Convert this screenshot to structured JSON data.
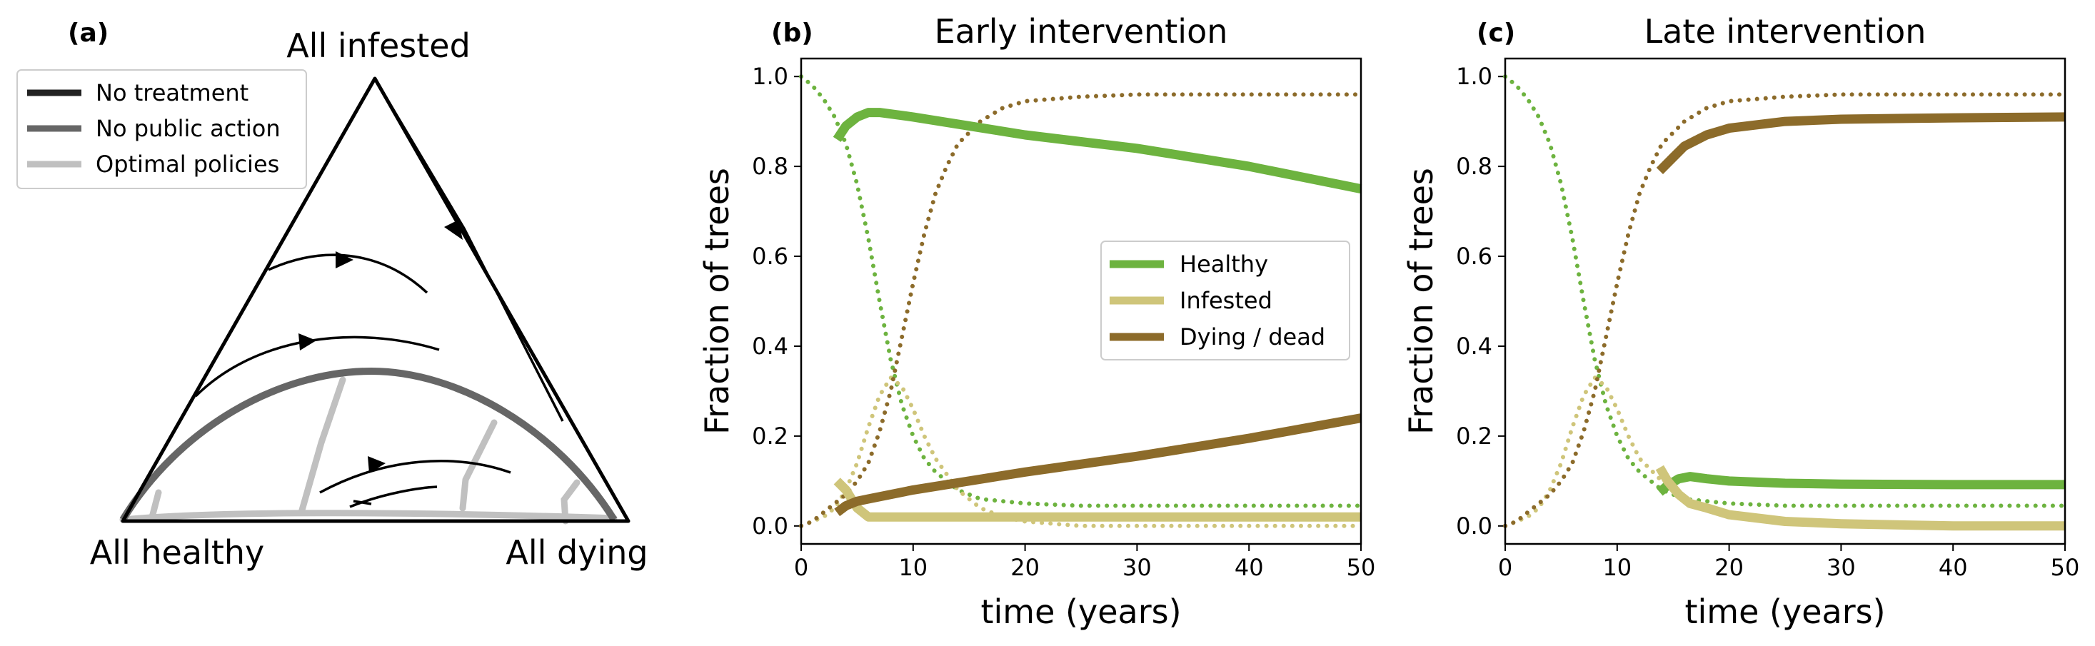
{
  "colors": {
    "healthy": "#6db33f",
    "infested": "#cfc57a",
    "dying": "#8c6b2a",
    "no_treatment": "#222222",
    "no_public_action": "#666666",
    "optimal": "#c0c0c0"
  },
  "panel_a": {
    "label": "(a)",
    "corners": {
      "top": "All infested",
      "left": "All healthy",
      "right": "All dying"
    },
    "legend": [
      "No treatment",
      "No public action",
      "Optimal policies"
    ]
  },
  "chart_data": [
    {
      "type": "line",
      "panel_label": "(b)",
      "title": "Early intervention",
      "xlabel": "time (years)",
      "ylabel": "Fraction of trees",
      "xlim": [
        0,
        50
      ],
      "ylim": [
        -0.04,
        1.04
      ],
      "xticks": [
        "0",
        "10",
        "20",
        "30",
        "40",
        "50"
      ],
      "yticks": [
        "0.0",
        "0.2",
        "0.4",
        "0.6",
        "0.8",
        "1.0"
      ],
      "legend": [
        "Healthy",
        "Infested",
        "Dying / dead"
      ],
      "series": [
        {
          "name": "Healthy (no action)",
          "style": "dotted",
          "color": "healthy",
          "x": [
            0,
            1,
            2,
            3,
            4,
            5,
            6,
            7,
            8,
            9,
            10,
            11,
            12,
            14,
            16,
            20,
            25,
            30,
            40,
            50
          ],
          "y": [
            1.0,
            0.98,
            0.95,
            0.91,
            0.85,
            0.76,
            0.64,
            0.5,
            0.37,
            0.27,
            0.2,
            0.15,
            0.12,
            0.08,
            0.06,
            0.05,
            0.045,
            0.045,
            0.045,
            0.045
          ]
        },
        {
          "name": "Infested (no action)",
          "style": "dotted",
          "color": "infested",
          "x": [
            0,
            1,
            2,
            3,
            4,
            5,
            6,
            7,
            8,
            9,
            10,
            11,
            12,
            14,
            16,
            18,
            20,
            25,
            30,
            40,
            50
          ],
          "y": [
            0.0,
            0.01,
            0.02,
            0.04,
            0.08,
            0.14,
            0.22,
            0.29,
            0.33,
            0.31,
            0.26,
            0.2,
            0.15,
            0.08,
            0.04,
            0.02,
            0.01,
            0.0,
            0.0,
            0.0,
            0.0
          ]
        },
        {
          "name": "Dying / dead (no action)",
          "style": "dotted",
          "color": "dying",
          "x": [
            0,
            1,
            2,
            3,
            4,
            5,
            6,
            7,
            8,
            9,
            10,
            11,
            12,
            13,
            14,
            16,
            18,
            20,
            25,
            30,
            40,
            50
          ],
          "y": [
            0.0,
            0.01,
            0.03,
            0.05,
            0.07,
            0.1,
            0.14,
            0.21,
            0.3,
            0.42,
            0.54,
            0.65,
            0.74,
            0.8,
            0.85,
            0.9,
            0.93,
            0.945,
            0.955,
            0.96,
            0.96,
            0.96
          ]
        },
        {
          "name": "Healthy",
          "style": "solid",
          "color": "healthy",
          "x": [
            3.2,
            4,
            5,
            6,
            7,
            10,
            15,
            20,
            30,
            40,
            50
          ],
          "y": [
            0.86,
            0.89,
            0.91,
            0.92,
            0.92,
            0.91,
            0.89,
            0.87,
            0.84,
            0.8,
            0.75
          ]
        },
        {
          "name": "Infested",
          "style": "solid",
          "color": "infested",
          "x": [
            3.2,
            4,
            5,
            6,
            7,
            10,
            20,
            30,
            40,
            50
          ],
          "y": [
            0.1,
            0.08,
            0.04,
            0.02,
            0.02,
            0.02,
            0.02,
            0.02,
            0.02,
            0.02
          ]
        },
        {
          "name": "Dying / dead",
          "style": "solid",
          "color": "dying",
          "x": [
            3.2,
            4,
            5,
            6,
            10,
            20,
            30,
            40,
            50
          ],
          "y": [
            0.03,
            0.045,
            0.055,
            0.06,
            0.08,
            0.12,
            0.155,
            0.195,
            0.24
          ]
        }
      ]
    },
    {
      "type": "line",
      "panel_label": "(c)",
      "title": "Late intervention",
      "xlabel": "time (years)",
      "ylabel": "Fraction of trees",
      "xlim": [
        0,
        50
      ],
      "ylim": [
        -0.04,
        1.04
      ],
      "xticks": [
        "0",
        "10",
        "20",
        "30",
        "40",
        "50"
      ],
      "yticks": [
        "0.0",
        "0.2",
        "0.4",
        "0.6",
        "0.8",
        "1.0"
      ],
      "series": [
        {
          "name": "Healthy (no action)",
          "style": "dotted",
          "color": "healthy",
          "x": [
            0,
            1,
            2,
            3,
            4,
            5,
            6,
            7,
            8,
            9,
            10,
            11,
            12,
            14,
            16,
            20,
            25,
            30,
            40,
            50
          ],
          "y": [
            1.0,
            0.98,
            0.95,
            0.91,
            0.85,
            0.76,
            0.64,
            0.5,
            0.37,
            0.27,
            0.2,
            0.15,
            0.12,
            0.08,
            0.06,
            0.05,
            0.045,
            0.045,
            0.045,
            0.045
          ]
        },
        {
          "name": "Infested (no action)",
          "style": "dotted",
          "color": "infested",
          "x": [
            0,
            1,
            2,
            3,
            4,
            5,
            6,
            7,
            8,
            9,
            10,
            11,
            12,
            14
          ],
          "y": [
            0.0,
            0.01,
            0.02,
            0.04,
            0.08,
            0.14,
            0.22,
            0.29,
            0.33,
            0.31,
            0.26,
            0.2,
            0.15,
            0.1
          ]
        },
        {
          "name": "Dying / dead (no action)",
          "style": "dotted",
          "color": "dying",
          "x": [
            0,
            1,
            2,
            3,
            4,
            5,
            6,
            7,
            8,
            9,
            10,
            11,
            12,
            13,
            14,
            16,
            18,
            20,
            25,
            30,
            40,
            50
          ],
          "y": [
            0.0,
            0.01,
            0.03,
            0.05,
            0.07,
            0.1,
            0.14,
            0.21,
            0.3,
            0.42,
            0.54,
            0.65,
            0.74,
            0.8,
            0.85,
            0.9,
            0.93,
            0.945,
            0.955,
            0.96,
            0.96,
            0.96
          ]
        },
        {
          "name": "Healthy",
          "style": "solid",
          "color": "healthy",
          "x": [
            13.8,
            14.5,
            15.5,
            16.5,
            18,
            20,
            25,
            30,
            40,
            50
          ],
          "y": [
            0.075,
            0.09,
            0.105,
            0.11,
            0.105,
            0.1,
            0.095,
            0.093,
            0.092,
            0.092
          ]
        },
        {
          "name": "Infested",
          "style": "solid",
          "color": "infested",
          "x": [
            13.8,
            14.5,
            15.5,
            16.5,
            18,
            20,
            25,
            30,
            40,
            50
          ],
          "y": [
            0.13,
            0.1,
            0.07,
            0.05,
            0.04,
            0.025,
            0.01,
            0.005,
            0.0,
            0.0
          ]
        },
        {
          "name": "Dying / dead",
          "style": "solid",
          "color": "dying",
          "x": [
            13.8,
            15,
            16,
            18,
            20,
            25,
            30,
            40,
            50
          ],
          "y": [
            0.79,
            0.82,
            0.845,
            0.87,
            0.885,
            0.9,
            0.905,
            0.908,
            0.91
          ]
        }
      ]
    }
  ]
}
